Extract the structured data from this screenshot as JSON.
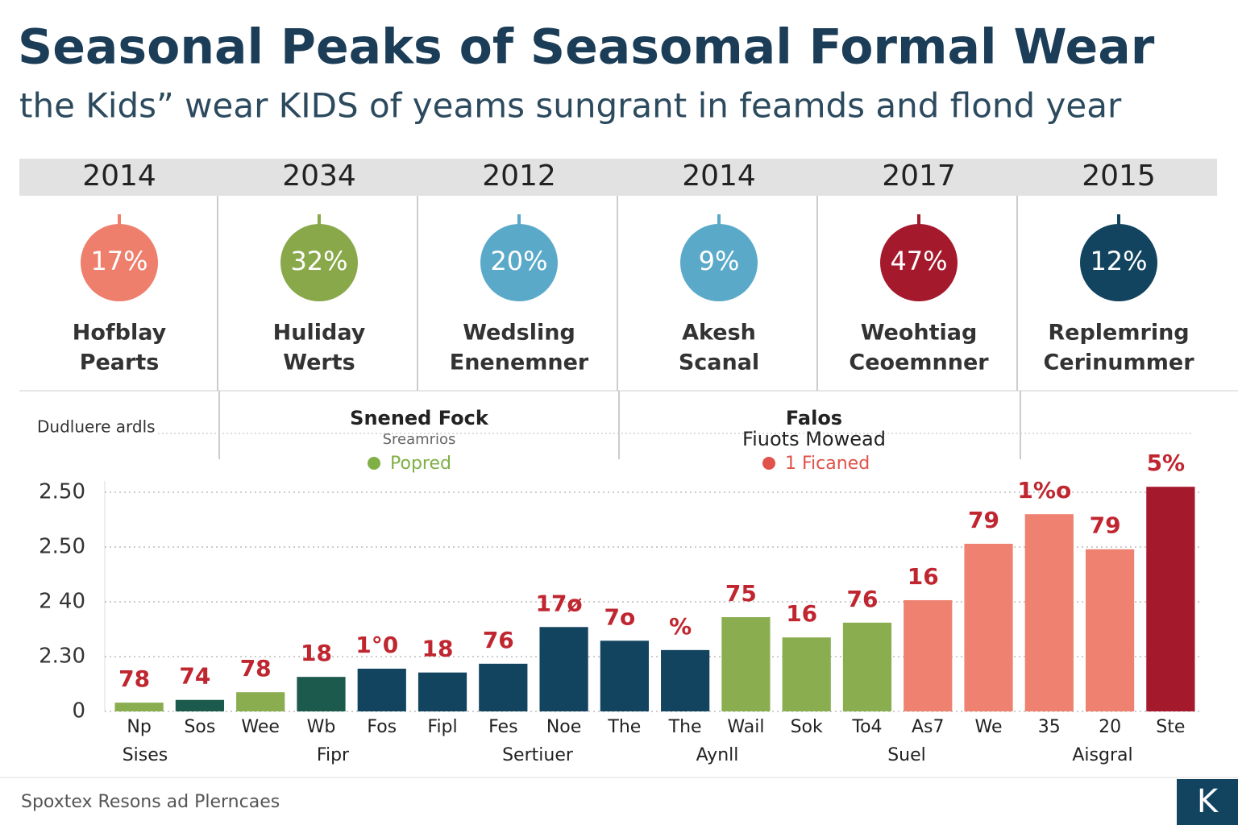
{
  "header": {
    "title": "Seasonal Peaks of Seasomal Formal Wear",
    "subtitle": "the Kids” wear KIDS of yeams sungrant in feamds and flond year"
  },
  "cards": [
    {
      "year": "2014",
      "percent": "17%",
      "label": [
        "Hofblay",
        "Pearts"
      ],
      "color": "#ee7f6c"
    },
    {
      "year": "2034",
      "percent": "32%",
      "label": [
        "Huliday",
        "Werts"
      ],
      "color": "#88a84a"
    },
    {
      "year": "2012",
      "percent": "20%",
      "label": [
        "Wedsling",
        "Enenemner"
      ],
      "color": "#5aa9c9"
    },
    {
      "year": "2014",
      "percent": "9%",
      "label": [
        "Akesh",
        "Scanal"
      ],
      "color": "#5aa9c9"
    },
    {
      "year": "2017",
      "percent": "47%",
      "label": [
        "Weohtiag",
        "Ceoemnner"
      ],
      "color": "#a4192b"
    },
    {
      "year": "2015",
      "percent": "12%",
      "label": [
        "Replemring",
        "Cerinummer"
      ],
      "color": "#12445f"
    }
  ],
  "legend": {
    "left": "Dudluere ardls",
    "groups": [
      {
        "title": "Snened Fock",
        "subtitle": "Sreamrios",
        "item": "Popred",
        "color": "#7fb045"
      },
      {
        "title": "Falos",
        "subtitle": "Fiuots Mowead",
        "item": "1 Ficaned",
        "color": "#e0524a"
      }
    ]
  },
  "chart_data": {
    "type": "bar",
    "categories": [
      "Np",
      "Sos",
      "Wee",
      "Wb",
      "Fos",
      "Fipl",
      "Fes",
      "Noe",
      "The",
      "The",
      "Wail",
      "Sok",
      "To4",
      "As7",
      "We",
      "35",
      "20",
      "Ste"
    ],
    "values": [
      0.16,
      0.21,
      0.35,
      0.63,
      0.78,
      0.71,
      0.87,
      1.54,
      1.29,
      1.12,
      1.72,
      1.35,
      1.62,
      2.03,
      3.06,
      3.6,
      2.96,
      4.1
    ],
    "colors": [
      "#8aad50",
      "#1d5a4e",
      "#8aad50",
      "#1d5a4e",
      "#12445f",
      "#12445f",
      "#12445f",
      "#12445f",
      "#12445f",
      "#12445f",
      "#8aad50",
      "#8aad50",
      "#8aad50",
      "#ee8170",
      "#ee8170",
      "#ee8170",
      "#ee8170",
      "#a4192b"
    ],
    "bar_labels": [
      "78",
      "74",
      "78",
      "18",
      "1°0",
      "18",
      "76",
      "17ø",
      "7o",
      "%",
      "75",
      "16",
      "76",
      "16",
      "79",
      "1%o",
      "79",
      "5%"
    ],
    "group_labels": [
      "Sises",
      "Fipr",
      "Sertiuer",
      "Aynll",
      "Suel",
      "Aisgral"
    ],
    "ylim": [
      0,
      4.2
    ],
    "yticks": [
      0,
      {
        "value": 1,
        "label": "2.30"
      },
      {
        "value": 2,
        "label": "2 40"
      },
      {
        "value": 3,
        "label": "2.50"
      },
      {
        "value": 4,
        "label": "2.50"
      }
    ],
    "grid": true
  },
  "footer": {
    "source": "Spoxtex Resons ad Plerncaes",
    "logo": "K"
  }
}
